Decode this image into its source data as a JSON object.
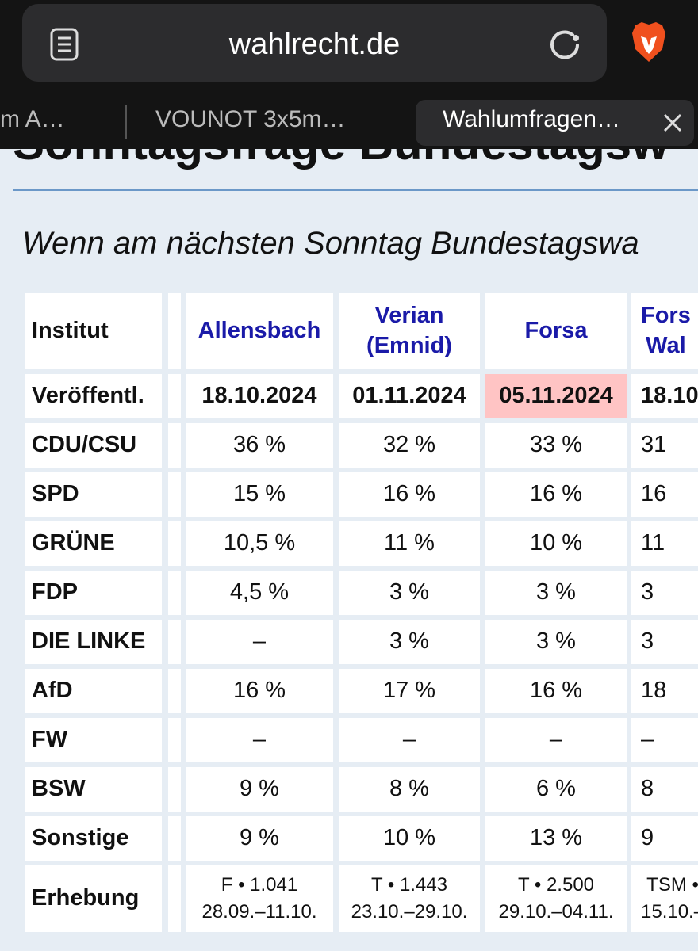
{
  "browser": {
    "url": "wahlrecht.de",
    "tabs": [
      "m A…",
      "VOUNOT 3x5m…",
      "Wahlumfragen…"
    ]
  },
  "page": {
    "heading": "Sonntagsfrage Bundestagsw",
    "subtitle": "Wenn am nächsten Sonntag Bundestagswa",
    "table": {
      "header": [
        "Institut",
        "Allensbach",
        "Verian\n(Emnid)",
        "Forsa",
        "Fors\nWal"
      ],
      "rows": [
        [
          "Veröffentl.",
          "18.10.2024",
          "01.11.2024",
          "05.11.2024",
          "18.10"
        ],
        [
          "CDU/CSU",
          "36 %",
          "32 %",
          "33 %",
          "31"
        ],
        [
          "SPD",
          "15 %",
          "16 %",
          "16 %",
          "16"
        ],
        [
          "GRÜNE",
          "10,5 %",
          "11 %",
          "10 %",
          "11"
        ],
        [
          "FDP",
          "4,5 %",
          "3 %",
          "3 %",
          "3"
        ],
        [
          "DIE LINKE",
          "–",
          "3 %",
          "3 %",
          "3"
        ],
        [
          "AfD",
          "16 %",
          "17 %",
          "16 %",
          "18"
        ],
        [
          "FW",
          "–",
          "–",
          "–",
          "–"
        ],
        [
          "BSW",
          "9 %",
          "8 %",
          "6 %",
          "8"
        ],
        [
          "Sonstige",
          "9 %",
          "10 %",
          "13 %",
          "9"
        ],
        [
          "Erhebung",
          "F • 1.041\n28.09.–11.10.",
          "T • 1.443\n23.10.–29.10.",
          "T • 2.500\n29.10.–04.11.",
          "TSM •\n15.10.–"
        ]
      ]
    }
  }
}
